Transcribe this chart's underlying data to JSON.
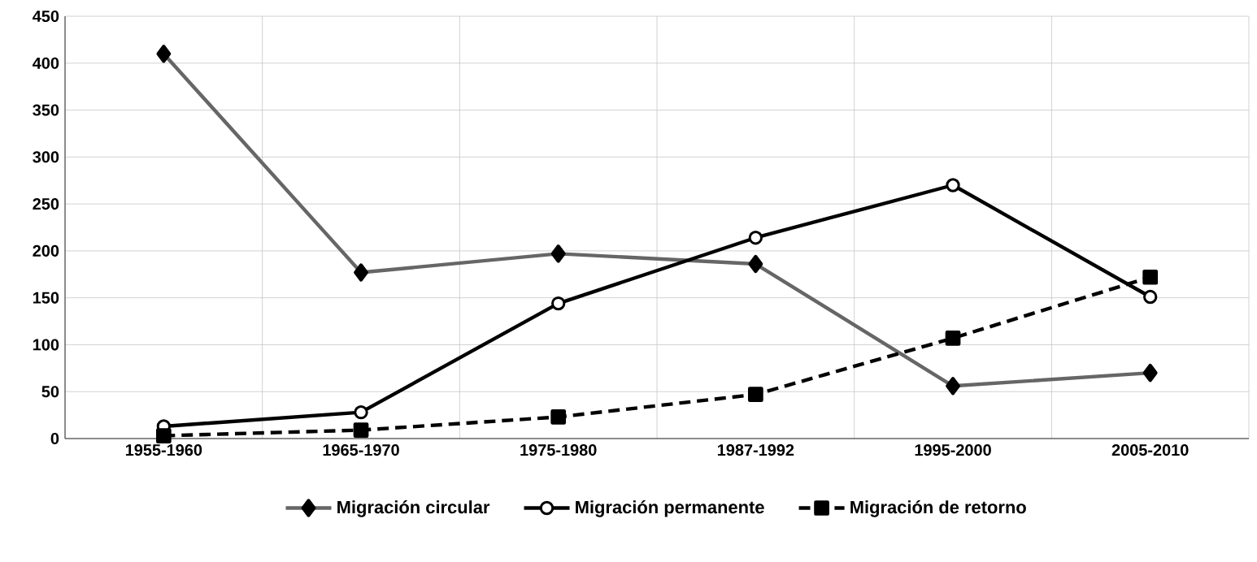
{
  "chart_data": {
    "type": "line",
    "categories": [
      "1955-1960",
      "1965-1970",
      "1975-1980",
      "1987-1992",
      "1995-2000",
      "2005-2010"
    ],
    "series": [
      {
        "name": "Migración circular",
        "color": "#666666",
        "marker": "diamond",
        "line_style": "solid",
        "values": [
          410,
          177,
          197,
          186,
          56,
          70
        ]
      },
      {
        "name": "Migración permanente",
        "color": "#000000",
        "marker": "circle",
        "line_style": "solid",
        "values": [
          13,
          28,
          144,
          214,
          270,
          151
        ]
      },
      {
        "name": "Migración de retorno",
        "color": "#000000",
        "marker": "square",
        "line_style": "dashed",
        "values": [
          3,
          9,
          23,
          47,
          107,
          172
        ]
      }
    ],
    "ylim": [
      0,
      450
    ],
    "yticks": [
      0,
      50,
      100,
      150,
      200,
      250,
      300,
      350,
      400,
      450
    ],
    "grid": true,
    "legend": "bottom"
  }
}
